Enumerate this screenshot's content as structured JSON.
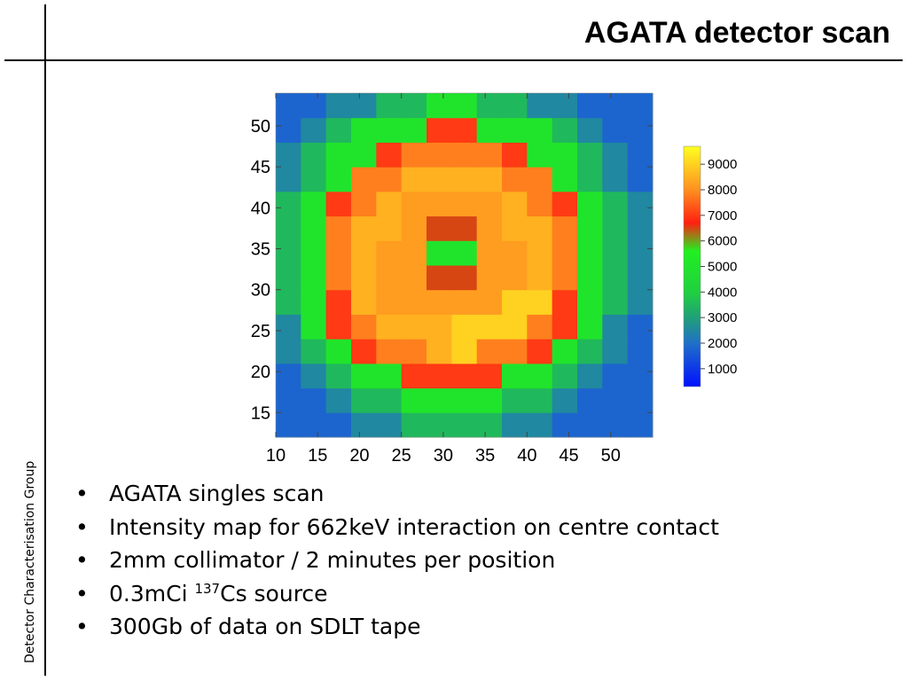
{
  "header": {
    "title": "AGATA detector scan"
  },
  "sidebar": {
    "label": "Detector Characterisation Group"
  },
  "chart_data": {
    "type": "heatmap",
    "xbins": [
      10,
      13,
      16,
      19,
      22,
      25,
      28,
      31,
      34,
      37,
      40,
      43,
      46,
      49,
      52,
      55
    ],
    "ybins": [
      12,
      15,
      18,
      21,
      24,
      27,
      30,
      33,
      36,
      39,
      42,
      45,
      48,
      51,
      54
    ],
    "values": [
      [
        1800,
        1800,
        1800,
        2500,
        2500,
        3500,
        3500,
        3500,
        3500,
        2500,
        2500,
        1800,
        1800,
        1800,
        1800
      ],
      [
        1800,
        1800,
        2500,
        3500,
        3500,
        5000,
        5000,
        5000,
        5000,
        3500,
        3500,
        2500,
        1800,
        1800,
        1800
      ],
      [
        1800,
        2500,
        3500,
        5000,
        5000,
        7000,
        7000,
        7000,
        7000,
        5000,
        5000,
        3500,
        2500,
        1800,
        1800
      ],
      [
        2500,
        3500,
        5000,
        7000,
        7800,
        7800,
        8500,
        9000,
        7800,
        7800,
        7000,
        5000,
        3500,
        2500,
        1800
      ],
      [
        2500,
        5000,
        7000,
        7800,
        8500,
        8500,
        8500,
        9000,
        9000,
        9000,
        7800,
        7000,
        5000,
        2500,
        1800
      ],
      [
        3500,
        5000,
        7000,
        8500,
        8200,
        8200,
        8200,
        8200,
        8200,
        9000,
        9000,
        7000,
        5000,
        3500,
        2500
      ],
      [
        3500,
        5000,
        7800,
        8500,
        8200,
        8200,
        6500,
        6500,
        8200,
        8200,
        8500,
        7800,
        5000,
        3500,
        2500
      ],
      [
        3500,
        5000,
        7800,
        8500,
        8200,
        8200,
        5000,
        5000,
        8200,
        8200,
        8500,
        7800,
        5000,
        3500,
        2500
      ],
      [
        3500,
        5000,
        7800,
        8500,
        8500,
        8200,
        6500,
        6500,
        8200,
        8500,
        8500,
        7800,
        5000,
        3500,
        2500
      ],
      [
        3500,
        5000,
        7000,
        7800,
        8500,
        8200,
        8200,
        8200,
        8200,
        8500,
        7800,
        7000,
        5000,
        3500,
        2500
      ],
      [
        2500,
        3500,
        5000,
        7800,
        7800,
        8500,
        8500,
        8500,
        8500,
        7800,
        7800,
        5000,
        3500,
        2500,
        1800
      ],
      [
        2500,
        3500,
        5000,
        5000,
        7000,
        7800,
        7800,
        7800,
        7800,
        7000,
        5000,
        5000,
        3500,
        2500,
        1800
      ],
      [
        1800,
        2500,
        3500,
        5000,
        5000,
        5000,
        7000,
        7000,
        5000,
        5000,
        5000,
        3500,
        2500,
        1800,
        1800
      ],
      [
        1800,
        1800,
        2500,
        2500,
        3500,
        3500,
        5000,
        5000,
        3500,
        3500,
        2500,
        2500,
        1800,
        1800,
        1800
      ]
    ],
    "xlim": [
      10,
      55
    ],
    "ylim": [
      12,
      54
    ],
    "xticks": [
      10,
      15,
      20,
      25,
      30,
      35,
      40,
      45,
      50
    ],
    "yticks": [
      15,
      20,
      25,
      30,
      35,
      40,
      45,
      50
    ],
    "clim": [
      300,
      9700
    ],
    "cticks": [
      1000,
      2000,
      3000,
      4000,
      5000,
      6000,
      7000,
      8000,
      9000
    ],
    "colorscale": [
      [
        300,
        "#0010ff"
      ],
      [
        2000,
        "#2070c8"
      ],
      [
        3000,
        "#20a078"
      ],
      [
        4000,
        "#20d040"
      ],
      [
        5600,
        "#20f020"
      ],
      [
        6700,
        "#ff2010"
      ],
      [
        8000,
        "#ff9020"
      ],
      [
        9700,
        "#ffff20"
      ]
    ]
  },
  "bullets": [
    "AGATA singles scan",
    "Intensity map for 662keV interaction on centre contact",
    "2mm collimator / 2 minutes per position",
    [
      "0.3mCi ",
      "137",
      "Cs source"
    ],
    "300Gb of data on SDLT tape"
  ]
}
